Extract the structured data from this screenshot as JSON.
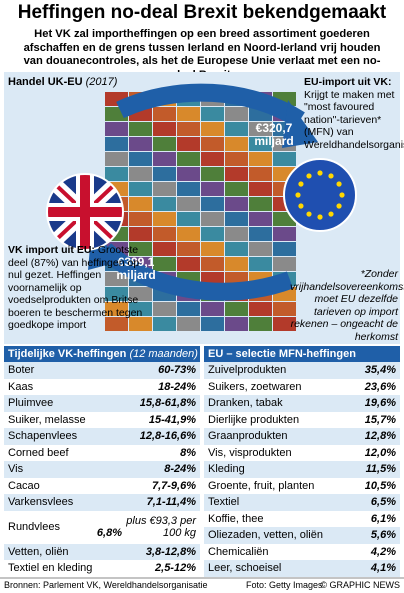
{
  "header": {
    "title": "Heffingen no-deal Brexit bekendgemaakt",
    "subtitle": "Het VK zal importheffingen op een breed assortiment goederen afschaffen en de grens tussen Ierland en Noord-Ierland vrij houden van douanecontroles, als het de Europese Unie verlaat met een no-deal Brexit"
  },
  "trade": {
    "title": "Handel UK-EU",
    "year": "(2017)",
    "flow_to_eu": "€320,7 miljard",
    "flow_to_uk": "€399,1 miljard",
    "eu_import": {
      "head": "EU-import uit VK:",
      "text": "Krijgt te maken met \"most favoured nation\"-tarieven* (MFN) van Wereldhandelsorganisatie"
    },
    "uk_import": {
      "head": "VK import uit EU:",
      "text": "Grootste deel (87%) van heffingen op nul gezet. Heffingen voornamelijk op voedselprodukten om Britse boeren te beschermen tegen goedkope import"
    },
    "footnote": "*Zonder vrijhandelsovereenkomst moet EU dezelfde tarieven op import rekenen – ongeacht de herkomst"
  },
  "uk_table": {
    "title": "Tijdelijke VK-heffingen",
    "period": "(12 maanden)",
    "rows": [
      [
        "Boter",
        "60-73%"
      ],
      [
        "Kaas",
        "18-24%"
      ],
      [
        "Pluimvee",
        "15,8-61,8%"
      ],
      [
        "Suiker, melasse",
        "15-41,9%"
      ],
      [
        "Schapenvlees",
        "12,8-16,6%"
      ],
      [
        "Corned beef",
        "8%"
      ],
      [
        "Vis",
        "8-24%"
      ],
      [
        "Cacao",
        "7,7-9,6%"
      ],
      [
        "Varkensvlees",
        "7,1-11,4%"
      ],
      [
        "Rundvlees",
        "6,8%",
        "plus €93,3 per 100 kg"
      ],
      [
        "Vetten, oliën",
        "3,8-12,8%"
      ],
      [
        "Textiel en kleding",
        "2,5-12%"
      ]
    ]
  },
  "eu_table": {
    "title": "EU – selectie MFN-heffingen",
    "rows": [
      [
        "Zuivelprodukten",
        "35,4%"
      ],
      [
        "Suikers, zoetwaren",
        "23,6%"
      ],
      [
        "Dranken, tabak",
        "19,6%"
      ],
      [
        "Dierlijke produkten",
        "15,7%"
      ],
      [
        "Graanprodukten",
        "12,8%"
      ],
      [
        "Vis, visprodukten",
        "12,0%"
      ],
      [
        "Kleding",
        "11,5%"
      ],
      [
        "Groente, fruit, planten",
        "10,5%"
      ],
      [
        "Textiel",
        "6,5%"
      ],
      [
        "Koffie, thee",
        "6,1%"
      ],
      [
        "Oliezaden, vetten, oliën",
        "5,6%"
      ],
      [
        "Chemicaliën",
        "4,2%"
      ],
      [
        "Leer, schoeisel",
        "4,1%"
      ]
    ]
  },
  "footer": {
    "sources": "Bronnen: Parlement VK, Wereldhandelsorganisatie",
    "photo": "Foto: Getty Images",
    "credit": "© GRAPHIC NEWS"
  }
}
